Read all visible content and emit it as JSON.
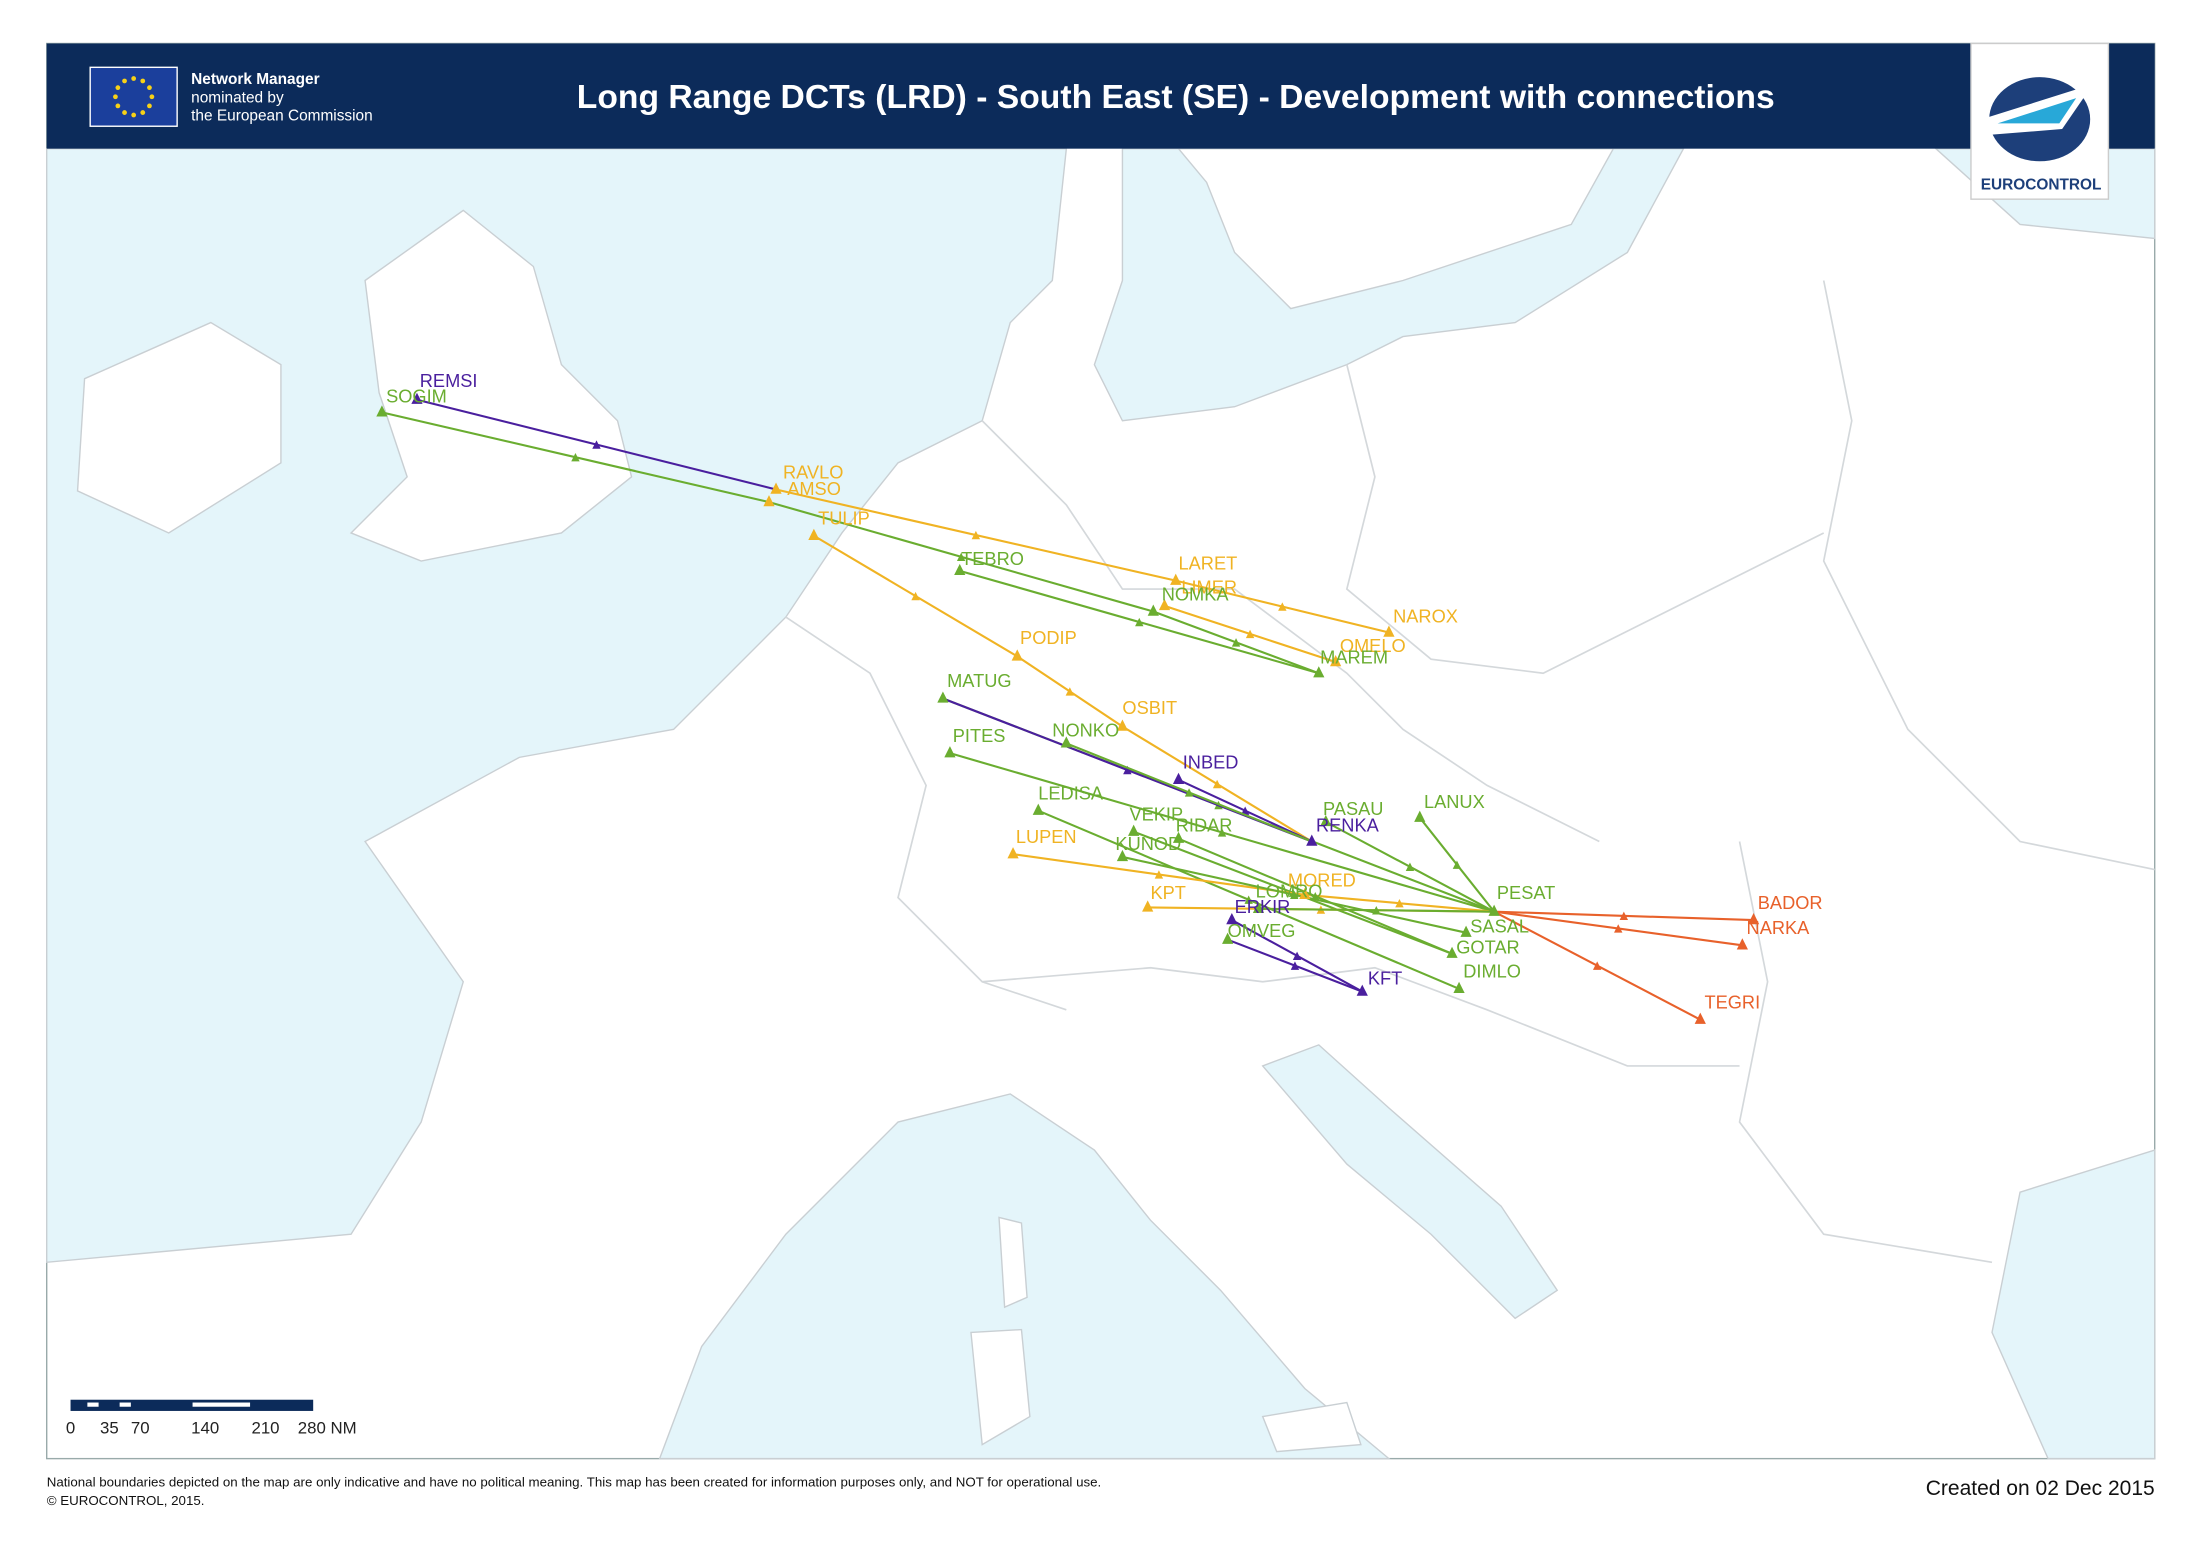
{
  "header": {
    "org": [
      "Network Manager",
      "nominated by",
      "the European Commission"
    ],
    "title": "Long Range DCTs (LRD) - South East (SE) - Development with connections",
    "logo": "EUROCONTROL"
  },
  "map": {
    "colors": {
      "purple": "#4a1f9e",
      "green": "#6aad30",
      "yellow": "#f0b323",
      "orange": "#e8612b"
    },
    "waypoints": [
      {
        "label": "REMSI",
        "color": "purple"
      },
      {
        "label": "SOGIM",
        "color": "green"
      },
      {
        "label": "RAVLO",
        "color": "yellow"
      },
      {
        "label": "AMSO",
        "color": "yellow"
      },
      {
        "label": "TULIP",
        "color": "yellow"
      },
      {
        "label": "TEBRO",
        "color": "green"
      },
      {
        "label": "LARET",
        "color": "yellow"
      },
      {
        "label": "LIMER",
        "color": "yellow"
      },
      {
        "label": "NOMKA",
        "color": "green"
      },
      {
        "label": "NAROX",
        "color": "yellow"
      },
      {
        "label": "OMELO",
        "color": "yellow"
      },
      {
        "label": "MAREM",
        "color": "green"
      },
      {
        "label": "PODIP",
        "color": "yellow"
      },
      {
        "label": "MATUG",
        "color": "green"
      },
      {
        "label": "OSBIT",
        "color": "yellow"
      },
      {
        "label": "NONKO",
        "color": "green"
      },
      {
        "label": "PITES",
        "color": "green"
      },
      {
        "label": "INBED",
        "color": "purple"
      },
      {
        "label": "LEDISA",
        "color": "green"
      },
      {
        "label": "VEKIP",
        "color": "green"
      },
      {
        "label": "RIDAR",
        "color": "green"
      },
      {
        "label": "PASAU",
        "color": "green"
      },
      {
        "label": "RENKA",
        "color": "purple"
      },
      {
        "label": "LANUX",
        "color": "green"
      },
      {
        "label": "LUPEN",
        "color": "yellow"
      },
      {
        "label": "KUNOD",
        "color": "green"
      },
      {
        "label": "MORED",
        "color": "yellow"
      },
      {
        "label": "LOMRO",
        "color": "green"
      },
      {
        "label": "KPT",
        "color": "yellow"
      },
      {
        "label": "ERKIR",
        "color": "purple"
      },
      {
        "label": "PESAT",
        "color": "green"
      },
      {
        "label": "OMVEG",
        "color": "green"
      },
      {
        "label": "SASAL",
        "color": "green"
      },
      {
        "label": "GOTAR",
        "color": "green"
      },
      {
        "label": "DIMLO",
        "color": "green"
      },
      {
        "label": "KFT",
        "color": "purple"
      },
      {
        "label": "BADOR",
        "color": "orange"
      },
      {
        "label": "NARKA",
        "color": "orange"
      },
      {
        "label": "TEGRI",
        "color": "orange"
      }
    ]
  },
  "scale": {
    "labels": [
      "0",
      "35",
      "70",
      "140",
      "210",
      "280 NM"
    ]
  },
  "footer": {
    "disclaimer": [
      "National boundaries depicted on the map are only indicative and have no political meaning. This map has been created for information purposes only, and NOT for operational use.",
      "© EUROCONTROL, 2015."
    ],
    "created": "Created on 02 Dec 2015"
  }
}
